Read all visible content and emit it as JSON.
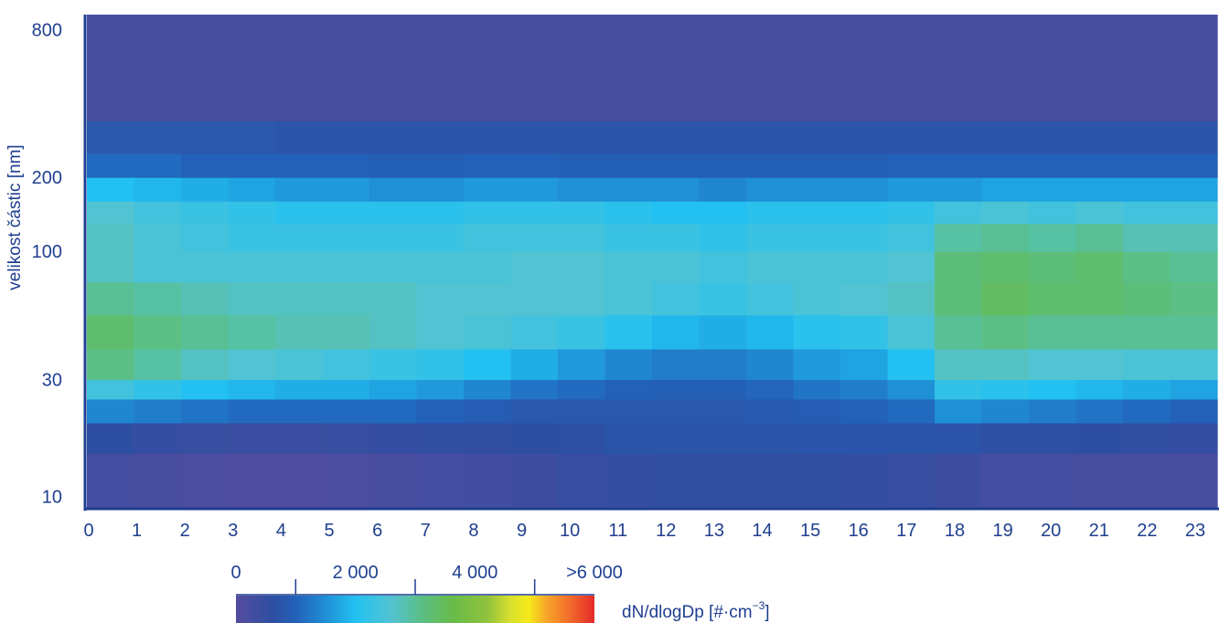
{
  "chart_data": {
    "type": "heatmap",
    "title": "",
    "xlabel": "",
    "ylabel": "velikost částic  [nm]",
    "x_ticks": [
      "0",
      "1",
      "2",
      "3",
      "4",
      "5",
      "6",
      "7",
      "8",
      "9",
      "10",
      "11",
      "12",
      "13",
      "14",
      "15",
      "16",
      "17",
      "18",
      "19",
      "20",
      "21",
      "22",
      "23"
    ],
    "y_scale": "log",
    "y_ticks": [
      10,
      30,
      100,
      200,
      800
    ],
    "y_tick_labels": [
      "10",
      "30",
      "100",
      "200",
      "800"
    ],
    "ylim": [
      9,
      920
    ],
    "y_bin_edges": [
      9,
      15,
      20,
      25,
      30,
      40,
      55,
      75,
      100,
      130,
      160,
      200,
      250,
      340,
      920
    ],
    "hours": [
      0,
      1,
      2,
      3,
      4,
      5,
      6,
      7,
      8,
      9,
      10,
      11,
      12,
      13,
      14,
      15,
      16,
      17,
      18,
      19,
      20,
      21,
      22,
      23
    ],
    "values": [
      [
        250,
        600,
        1400,
        2400,
        3100,
        3300,
        3000,
        2700,
        2700,
        2600,
        2000,
        1100,
        800,
        200
      ],
      [
        200,
        500,
        1300,
        2200,
        2900,
        3100,
        2900,
        2500,
        2500,
        2400,
        1900,
        1100,
        800,
        200
      ],
      [
        150,
        450,
        1200,
        2000,
        2700,
        3000,
        2800,
        2500,
        2400,
        2300,
        1800,
        1000,
        800,
        200
      ],
      [
        100,
        400,
        1100,
        1900,
        2600,
        2900,
        2700,
        2500,
        2300,
        2200,
        1700,
        1000,
        800,
        200
      ],
      [
        100,
        400,
        1100,
        1800,
        2500,
        2800,
        2700,
        2500,
        2300,
        2100,
        1600,
        1000,
        750,
        200
      ],
      [
        150,
        450,
        1100,
        1800,
        2400,
        2800,
        2700,
        2500,
        2300,
        2100,
        1600,
        1000,
        750,
        200
      ],
      [
        200,
        500,
        1100,
        1700,
        2300,
        2700,
        2700,
        2500,
        2300,
        2100,
        1500,
        950,
        750,
        200
      ],
      [
        250,
        550,
        1000,
        1600,
        2200,
        2600,
        2600,
        2500,
        2300,
        2100,
        1500,
        950,
        750,
        200
      ],
      [
        300,
        550,
        900,
        1400,
        2000,
        2500,
        2600,
        2500,
        2400,
        2200,
        1600,
        1000,
        750,
        200
      ],
      [
        350,
        600,
        800,
        1200,
        1800,
        2400,
        2600,
        2600,
        2400,
        2200,
        1600,
        1000,
        750,
        200
      ],
      [
        450,
        650,
        800,
        1100,
        1600,
        2300,
        2600,
        2600,
        2400,
        2200,
        1500,
        950,
        750,
        200
      ],
      [
        500,
        700,
        800,
        1000,
        1400,
        2100,
        2500,
        2500,
        2300,
        2100,
        1500,
        950,
        750,
        200
      ],
      [
        550,
        700,
        800,
        950,
        1300,
        1900,
        2400,
        2500,
        2300,
        2000,
        1500,
        950,
        750,
        200
      ],
      [
        550,
        700,
        800,
        950,
        1300,
        1800,
        2300,
        2400,
        2200,
        2000,
        1400,
        950,
        750,
        200
      ],
      [
        550,
        700,
        850,
        1050,
        1400,
        1900,
        2400,
        2500,
        2300,
        2100,
        1500,
        950,
        750,
        200
      ],
      [
        550,
        750,
        900,
        1200,
        1600,
        2100,
        2500,
        2500,
        2300,
        2100,
        1500,
        950,
        750,
        200
      ],
      [
        500,
        750,
        1000,
        1300,
        1700,
        2200,
        2600,
        2500,
        2300,
        2100,
        1500,
        950,
        750,
        200
      ],
      [
        450,
        750,
        1100,
        1500,
        2000,
        2500,
        2700,
        2600,
        2400,
        2200,
        1600,
        1000,
        750,
        200
      ],
      [
        350,
        700,
        1500,
        2200,
        2700,
        3000,
        3200,
        3200,
        2900,
        2400,
        1600,
        1000,
        750,
        200
      ],
      [
        250,
        650,
        1400,
        2100,
        2700,
        3100,
        3400,
        3300,
        3000,
        2500,
        1700,
        1000,
        750,
        200
      ],
      [
        250,
        650,
        1300,
        2000,
        2600,
        3000,
        3300,
        3200,
        2900,
        2400,
        1700,
        1000,
        750,
        200
      ],
      [
        200,
        600,
        1200,
        1900,
        2600,
        3000,
        3300,
        3300,
        3000,
        2500,
        1700,
        1000,
        750,
        200
      ],
      [
        200,
        550,
        1100,
        1800,
        2500,
        3000,
        3200,
        3100,
        2800,
        2400,
        1700,
        1000,
        750,
        200
      ],
      [
        200,
        500,
        1000,
        1700,
        2500,
        3000,
        3100,
        3000,
        2800,
        2400,
        1700,
        1000,
        750,
        200
      ]
    ],
    "colorbar": {
      "label_text": "dN/dlogDp [#·cm",
      "label_exponent": "−3",
      "label_close": "]",
      "range": [
        0,
        6000
      ],
      "tick_values": [
        0,
        2000,
        4000,
        6000
      ],
      "tick_labels": [
        "0",
        "2 000",
        "4 000",
        ">6 000"
      ],
      "minor_tick_values": [
        1000,
        3000,
        5000
      ],
      "stops": [
        {
          "value": 0,
          "color": "#564c9f"
        },
        {
          "value": 600,
          "color": "#2e4ea1"
        },
        {
          "value": 1000,
          "color": "#2361b9"
        },
        {
          "value": 1500,
          "color": "#1f8fd6"
        },
        {
          "value": 2000,
          "color": "#22c1f1"
        },
        {
          "value": 2600,
          "color": "#52c3d2"
        },
        {
          "value": 3100,
          "color": "#5bbf86"
        },
        {
          "value": 3600,
          "color": "#66bb4a"
        },
        {
          "value": 4200,
          "color": "#8fc23d"
        },
        {
          "value": 4600,
          "color": "#d9df2c"
        },
        {
          "value": 4900,
          "color": "#f6eb1a"
        },
        {
          "value": 5200,
          "color": "#f7a529"
        },
        {
          "value": 5600,
          "color": "#f26a2b"
        },
        {
          "value": 6000,
          "color": "#e42a2a"
        }
      ]
    },
    "grid": false,
    "legend_placement": "bottom"
  }
}
